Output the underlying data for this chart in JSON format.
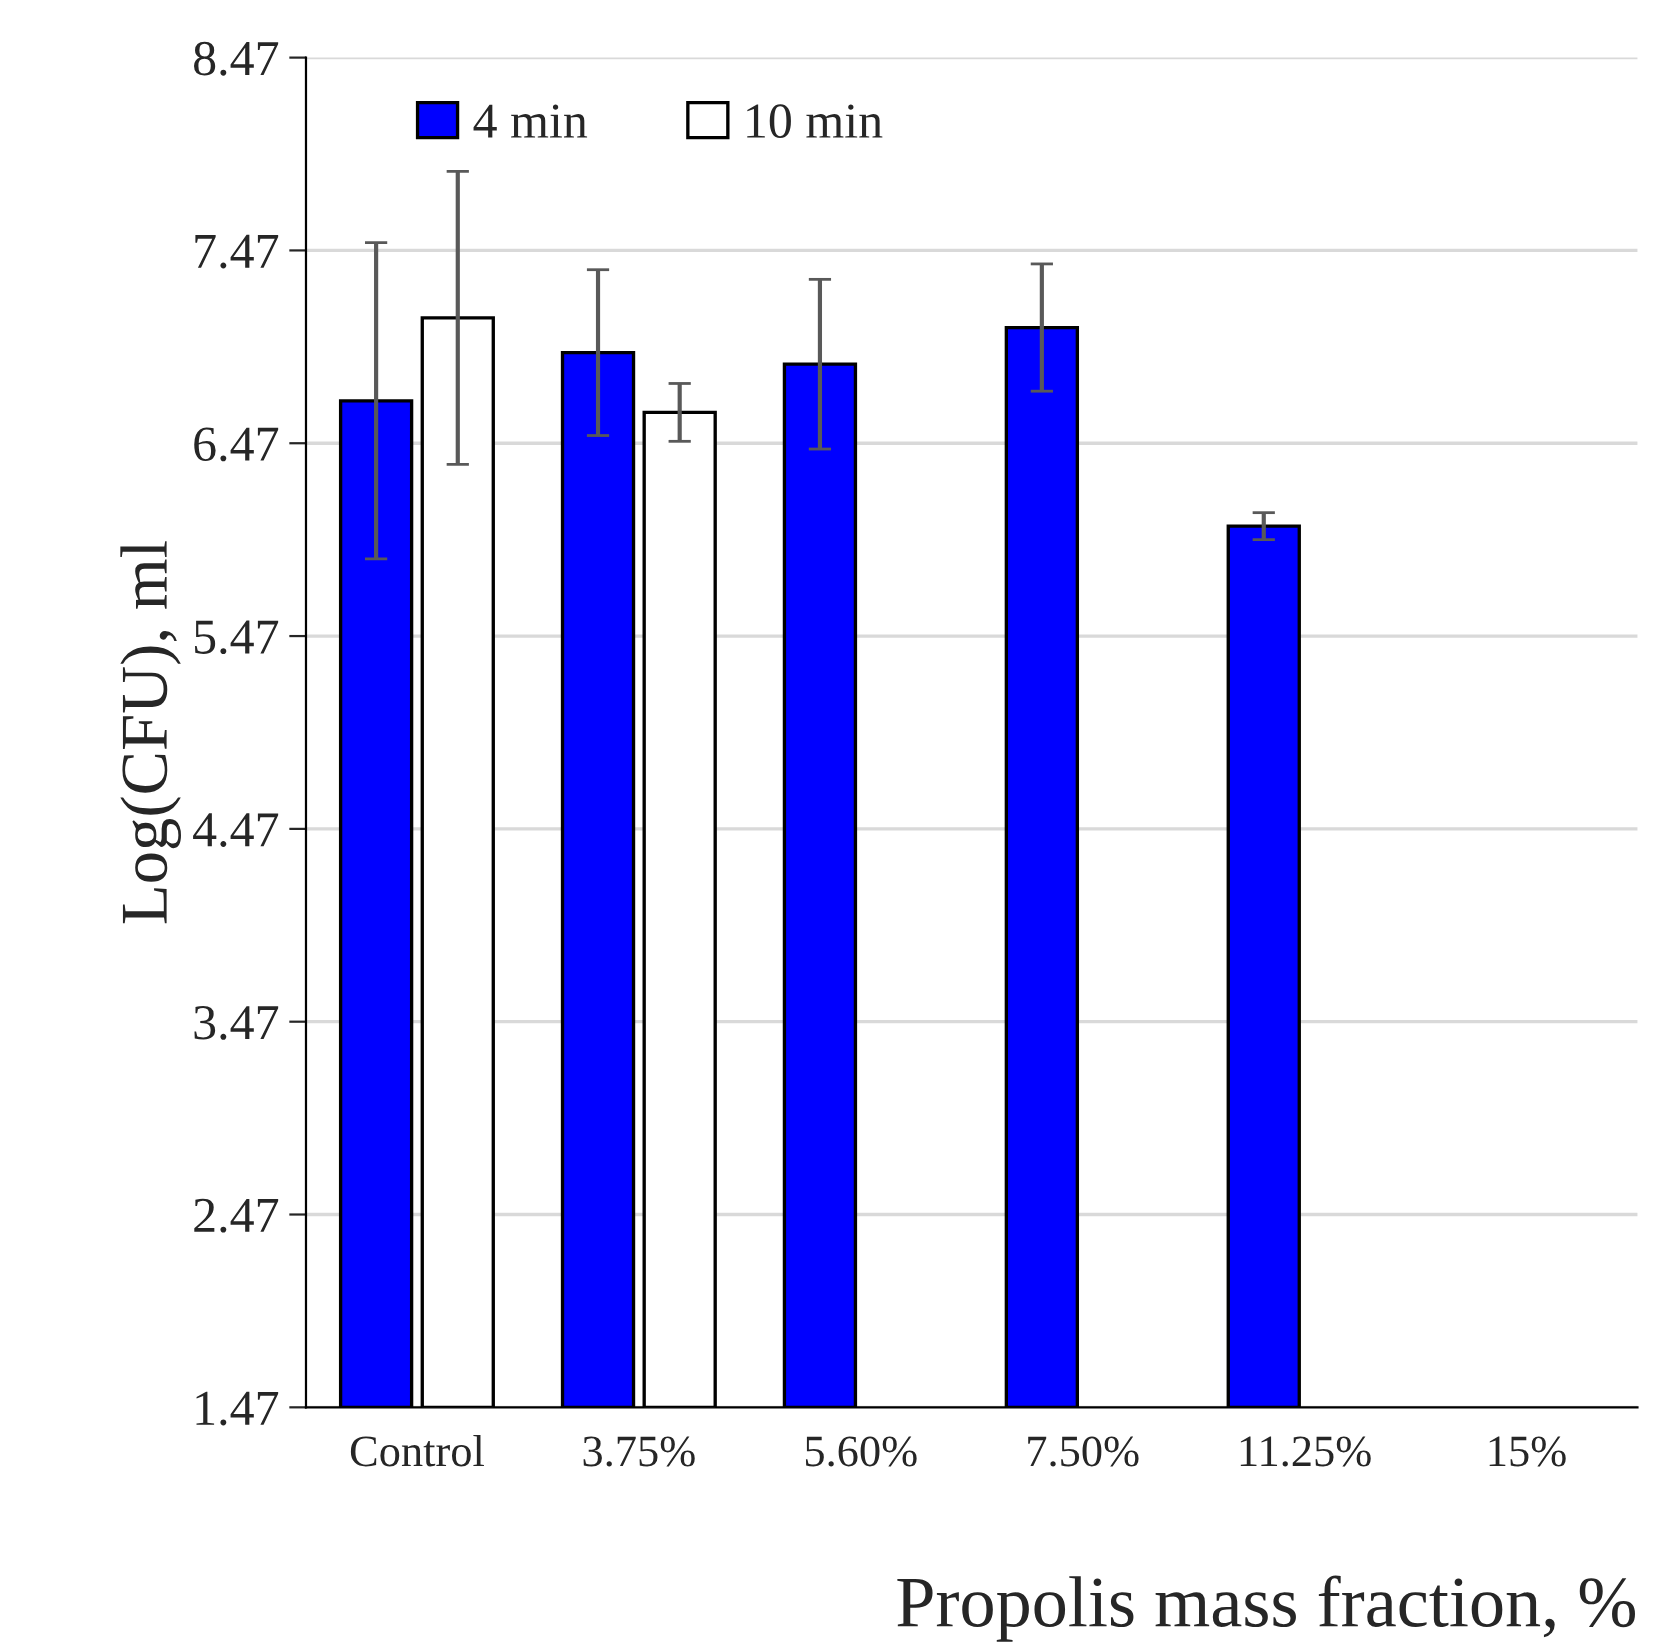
{
  "chart_data": {
    "type": "bar",
    "xlabel": "Propolis mass fraction, %",
    "ylabel": "Log(CFU), ml",
    "categories": [
      "Control",
      "3.75%",
      "5.60%",
      "7.50%",
      "11.25%",
      "15%"
    ],
    "series": [
      {
        "name": "4 min",
        "color": "#0000ff",
        "values": [
          6.69,
          6.94,
          6.88,
          7.07,
          6.04,
          null
        ],
        "errors": [
          0.82,
          0.43,
          0.44,
          0.33,
          0.07,
          null
        ]
      },
      {
        "name": "10 min",
        "color": "#ffffff",
        "values": [
          7.12,
          6.63,
          null,
          null,
          null,
          null
        ],
        "errors": [
          0.76,
          0.15,
          null,
          null,
          null,
          null
        ]
      }
    ],
    "ylim": [
      1.47,
      8.47
    ],
    "yticks": [
      1.47,
      2.47,
      3.47,
      4.47,
      5.47,
      6.47,
      7.47,
      8.47
    ],
    "grid": "y",
    "legend": "top left"
  }
}
